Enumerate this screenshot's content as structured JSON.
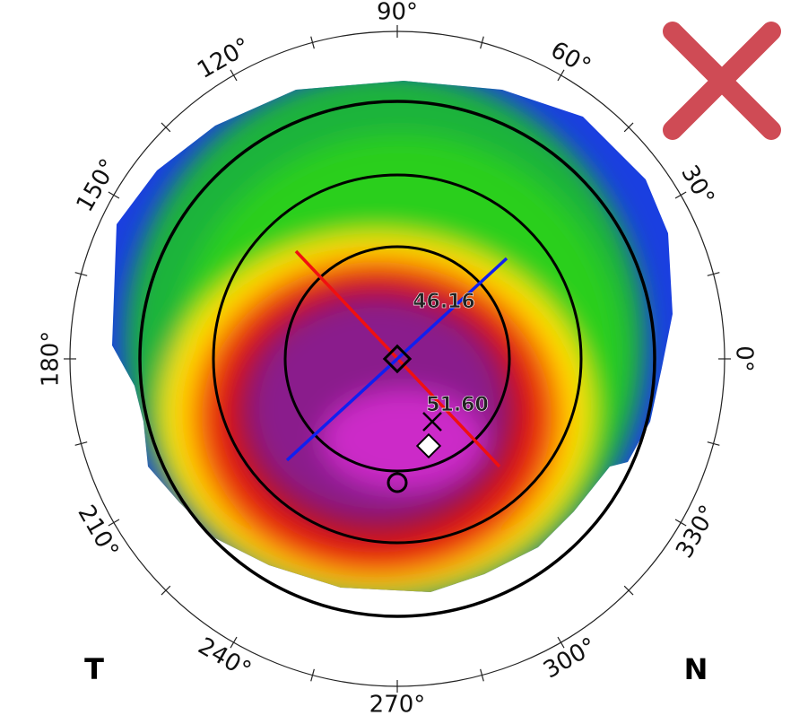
{
  "angle_labels": [
    "90°",
    "60°",
    "30°",
    "0°",
    "330°",
    "300°",
    "270°",
    "240°",
    "210°",
    "180°",
    "150°",
    "120°"
  ],
  "readings": [
    "46.16",
    "51.60"
  ],
  "side_labels": [
    "T",
    "N"
  ]
}
